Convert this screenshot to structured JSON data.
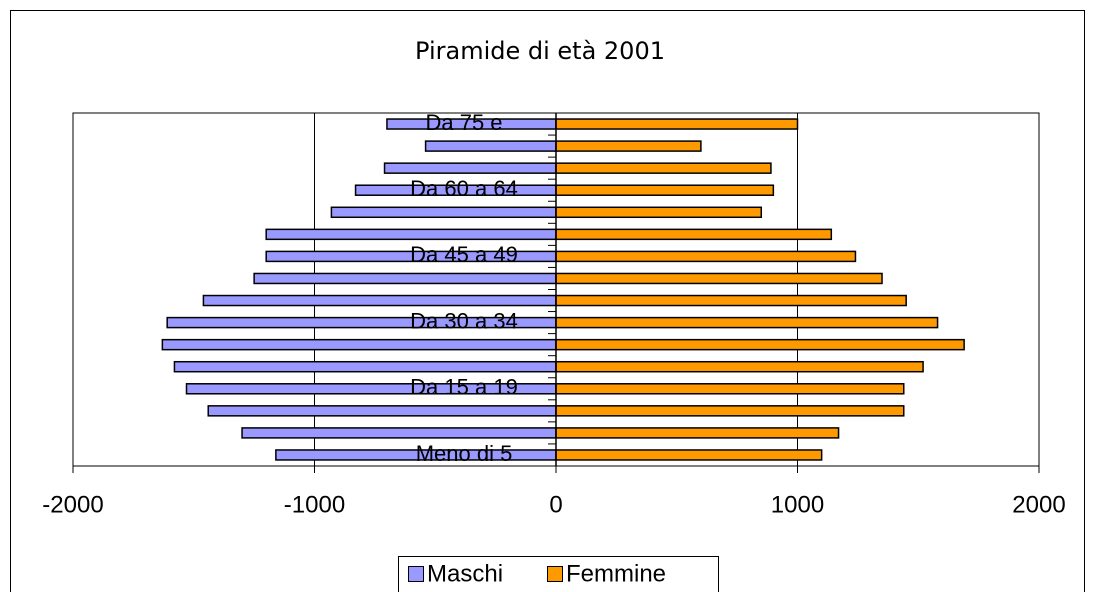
{
  "chart_data": {
    "type": "bar",
    "orientation": "horizontal",
    "title": "Piramide di età 2001",
    "categories": [
      "Meno di 5",
      null,
      null,
      "Da 15 a 19",
      null,
      null,
      "Da 30 a 34",
      null,
      null,
      "Da 45 a 49",
      null,
      null,
      "Da 60 a 64",
      null,
      null,
      "Da 75 e"
    ],
    "series": [
      {
        "name": "Maschi",
        "color": "#9999ff",
        "values": [
          -1160,
          -1300,
          -1440,
          -1530,
          -1580,
          -1630,
          -1610,
          -1460,
          -1250,
          -1200,
          -1200,
          -930,
          -830,
          -710,
          -540,
          -700
        ]
      },
      {
        "name": "Femmine",
        "color": "#ff9900",
        "values": [
          1100,
          1170,
          1440,
          1440,
          1520,
          1690,
          1580,
          1450,
          1350,
          1240,
          1140,
          850,
          900,
          890,
          600,
          1000
        ]
      }
    ],
    "xlim": [
      -2000,
      2000
    ],
    "xticks": [
      -2000,
      -1000,
      0,
      1000,
      2000
    ],
    "grid": true,
    "legend": "bottom"
  }
}
